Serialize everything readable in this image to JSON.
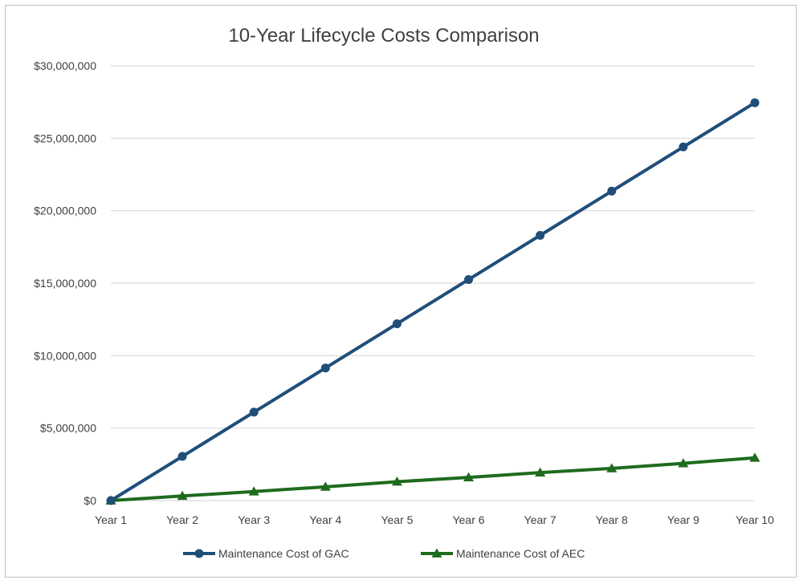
{
  "chart_data": {
    "type": "line",
    "title": "10-Year Lifecycle Costs Comparison",
    "categories": [
      "Year 1",
      "Year 2",
      "Year 3",
      "Year 4",
      "Year 5",
      "Year 6",
      "Year 7",
      "Year 8",
      "Year 9",
      "Year 10"
    ],
    "series": [
      {
        "name": "Maintenance Cost of GAC",
        "color": "#1f4e79",
        "marker": "circle",
        "values": [
          0,
          3050000,
          6100000,
          9150000,
          12200000,
          15250000,
          18300000,
          21350000,
          24400000,
          27450000
        ]
      },
      {
        "name": "Maintenance Cost of AEC",
        "color": "#1e6b1e",
        "marker": "triangle",
        "values": [
          0,
          320000,
          620000,
          950000,
          1300000,
          1600000,
          1930000,
          2220000,
          2570000,
          2950000
        ]
      }
    ],
    "y_ticks": [
      0,
      5000000,
      10000000,
      15000000,
      20000000,
      25000000,
      30000000
    ],
    "y_tick_labels": [
      "$0",
      "$5,000,000",
      "$10,000,000",
      "$15,000,000",
      "$20,000,000",
      "$25,000,000",
      "$30,000,000"
    ],
    "ylim": [
      0,
      30000000
    ],
    "grid": true,
    "legend_position": "bottom",
    "gridline_color": "#d9d9d9"
  }
}
